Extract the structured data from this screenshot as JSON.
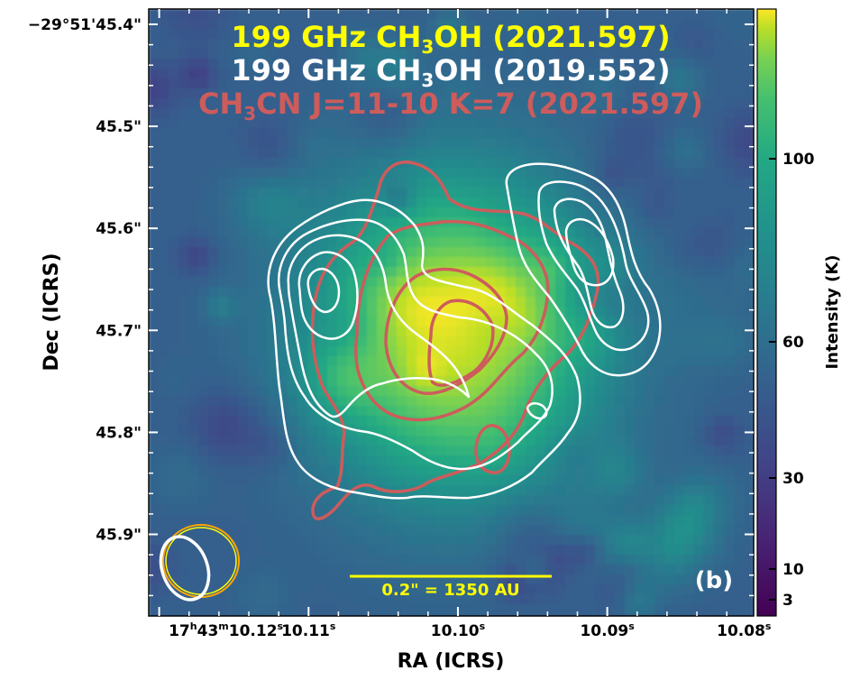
{
  "chart_data": {
    "type": "heatmap",
    "title_lines": [
      {
        "text_a": "199 GHz CH",
        "sub": "3",
        "text_b": "OH (2021.597)",
        "color": "#ffff00"
      },
      {
        "text_a": "199 GHz CH",
        "sub": "3",
        "text_b": "OH (2019.552)",
        "color": "#ffffff"
      },
      {
        "text_a": "CH",
        "sub": "3",
        "text_b": "CN J=11-10 K=7 (2021.597)",
        "color": "#cd5c5c"
      }
    ],
    "xlabel": "RA (ICRS)",
    "ylabel": "Dec (ICRS)",
    "colorbar_label": "Intensity (K)",
    "x_ticks": [
      {
        "h": "17",
        "m": "43",
        "s": "10.12",
        "sfx": "s",
        "full": true,
        "value": 10.12
      },
      {
        "label": "10.11",
        "sfx": "s",
        "value": 10.11
      },
      {
        "label": "10.10",
        "sfx": "s",
        "value": 10.1
      },
      {
        "label": "10.09",
        "sfx": "s",
        "value": 10.09
      },
      {
        "label": "10.08",
        "sfx": "s",
        "value": 10.08
      }
    ],
    "xlim": [
      10.1207,
      10.0802
    ],
    "y_ticks": [
      {
        "label": "−29°51'45.4\"",
        "value": 45.4
      },
      {
        "label": "45.5\"",
        "value": 45.5
      },
      {
        "label": "45.6\"",
        "value": 45.6
      },
      {
        "label": "45.7\"",
        "value": 45.7
      },
      {
        "label": "45.8\"",
        "value": 45.8
      },
      {
        "label": "45.9\"",
        "value": 45.9
      }
    ],
    "ylim": [
      45.385,
      45.98
    ],
    "colorbar_ticks": [
      {
        "label": "3",
        "value": 3
      },
      {
        "label": "10",
        "value": 10
      },
      {
        "label": "30",
        "value": 30
      },
      {
        "label": "60",
        "value": 60
      },
      {
        "label": "100",
        "value": 100
      }
    ],
    "colormap": "viridis",
    "scale_bar": {
      "label": "0.2\" = 1350 AU",
      "length_arcsec": 0.2,
      "color": "#ffff00"
    },
    "panel_label": "(b)",
    "contour_colors": {
      "white": "#ffffff",
      "red": "#cd5c5c",
      "beam": "#ffa500"
    }
  }
}
